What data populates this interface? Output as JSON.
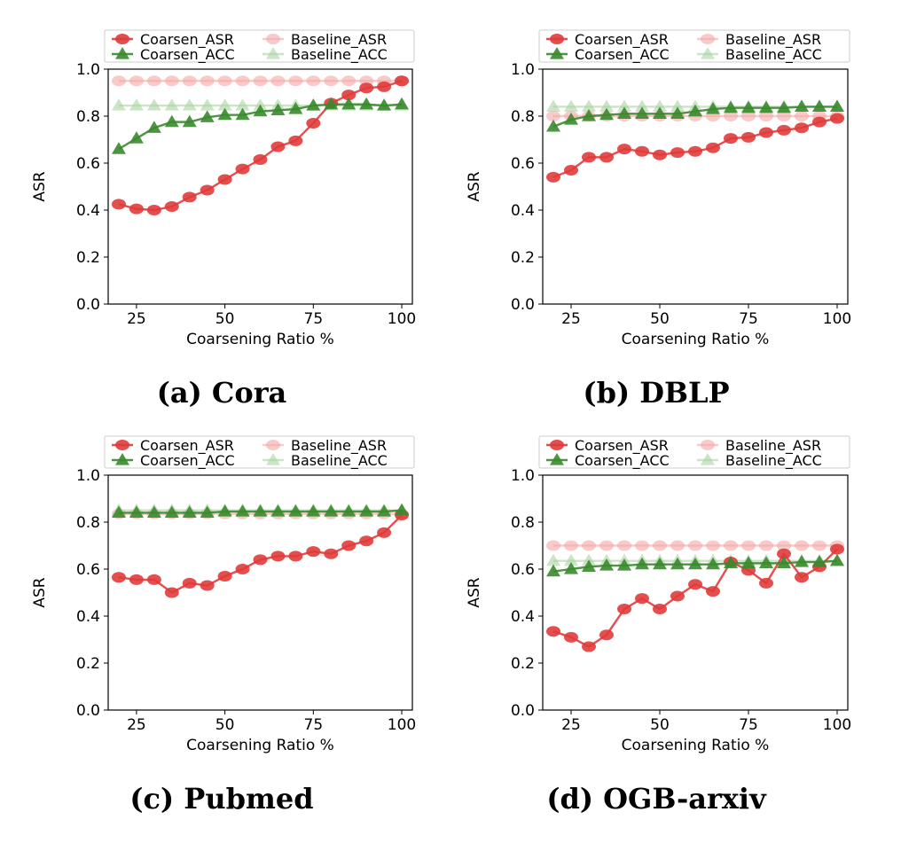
{
  "chart_data": [
    {
      "type": "line",
      "caption": "(a) Cora",
      "xlabel": "Coarsening Ratio %",
      "ylabel": "ASR",
      "xlim": [
        17,
        103
      ],
      "ylim": [
        0.0,
        1.0
      ],
      "xticks": [
        "25",
        "50",
        "75",
        "100"
      ],
      "yticks": [
        "0.0",
        "0.2",
        "0.4",
        "0.6",
        "0.8",
        "1.0"
      ],
      "legend_position": "top",
      "x": [
        20,
        25,
        30,
        35,
        40,
        45,
        50,
        55,
        60,
        65,
        70,
        75,
        80,
        85,
        90,
        95,
        100
      ],
      "series": [
        {
          "name": "Coarsen_ASR",
          "marker": "circle",
          "color": "#e03b3b",
          "alpha": 0.9,
          "values": [
            0.425,
            0.405,
            0.4,
            0.415,
            0.455,
            0.485,
            0.53,
            0.575,
            0.615,
            0.67,
            0.695,
            0.77,
            0.855,
            0.89,
            0.92,
            0.925,
            0.95
          ]
        },
        {
          "name": "Baseline_ASR",
          "marker": "circle",
          "color": "#f4a9a9",
          "alpha": 0.6,
          "values": [
            0.95,
            0.95,
            0.95,
            0.95,
            0.95,
            0.95,
            0.95,
            0.95,
            0.95,
            0.95,
            0.95,
            0.95,
            0.95,
            0.95,
            0.95,
            0.95,
            0.95
          ]
        },
        {
          "name": "Coarsen_ACC",
          "marker": "triangle",
          "color": "#3a8a2e",
          "alpha": 0.9,
          "values": [
            0.66,
            0.705,
            0.75,
            0.775,
            0.775,
            0.795,
            0.805,
            0.805,
            0.82,
            0.825,
            0.83,
            0.845,
            0.85,
            0.85,
            0.85,
            0.845,
            0.85
          ]
        },
        {
          "name": "Baseline_ACC",
          "marker": "triangle",
          "color": "#a8d4a0",
          "alpha": 0.6,
          "values": [
            0.845,
            0.845,
            0.845,
            0.845,
            0.845,
            0.845,
            0.845,
            0.845,
            0.845,
            0.845,
            0.845,
            0.845,
            0.845,
            0.845,
            0.845,
            0.845,
            0.845
          ]
        }
      ]
    },
    {
      "type": "line",
      "caption": "(b) DBLP",
      "xlabel": "Coarsening Ratio %",
      "ylabel": "ASR",
      "xlim": [
        17,
        103
      ],
      "ylim": [
        0.0,
        1.0
      ],
      "xticks": [
        "25",
        "50",
        "75",
        "100"
      ],
      "yticks": [
        "0.0",
        "0.2",
        "0.4",
        "0.6",
        "0.8",
        "1.0"
      ],
      "legend_position": "top",
      "x": [
        20,
        25,
        30,
        35,
        40,
        45,
        50,
        55,
        60,
        65,
        70,
        75,
        80,
        85,
        90,
        95,
        100
      ],
      "series": [
        {
          "name": "Coarsen_ASR",
          "marker": "circle",
          "color": "#e03b3b",
          "alpha": 0.9,
          "values": [
            0.54,
            0.57,
            0.625,
            0.625,
            0.66,
            0.65,
            0.635,
            0.645,
            0.65,
            0.665,
            0.705,
            0.71,
            0.73,
            0.74,
            0.75,
            0.775,
            0.79
          ]
        },
        {
          "name": "Baseline_ASR",
          "marker": "circle",
          "color": "#f4a9a9",
          "alpha": 0.6,
          "values": [
            0.8,
            0.8,
            0.8,
            0.8,
            0.8,
            0.8,
            0.8,
            0.8,
            0.8,
            0.8,
            0.8,
            0.8,
            0.8,
            0.8,
            0.8,
            0.8,
            0.8
          ]
        },
        {
          "name": "Coarsen_ACC",
          "marker": "triangle",
          "color": "#3a8a2e",
          "alpha": 0.9,
          "values": [
            0.755,
            0.785,
            0.8,
            0.805,
            0.81,
            0.81,
            0.81,
            0.81,
            0.82,
            0.83,
            0.835,
            0.835,
            0.835,
            0.835,
            0.84,
            0.84,
            0.84
          ]
        },
        {
          "name": "Baseline_ACC",
          "marker": "triangle",
          "color": "#a8d4a0",
          "alpha": 0.6,
          "values": [
            0.84,
            0.84,
            0.84,
            0.84,
            0.84,
            0.84,
            0.84,
            0.84,
            0.84,
            0.84,
            0.84,
            0.84,
            0.84,
            0.84,
            0.84,
            0.84,
            0.84
          ]
        }
      ]
    },
    {
      "type": "line",
      "caption": "(c) Pubmed",
      "xlabel": "Coarsening Ratio %",
      "ylabel": "ASR",
      "xlim": [
        17,
        103
      ],
      "ylim": [
        0.0,
        1.0
      ],
      "xticks": [
        "25",
        "50",
        "75",
        "100"
      ],
      "yticks": [
        "0.0",
        "0.2",
        "0.4",
        "0.6",
        "0.8",
        "1.0"
      ],
      "legend_position": "top",
      "x": [
        20,
        25,
        30,
        35,
        40,
        45,
        50,
        55,
        60,
        65,
        70,
        75,
        80,
        85,
        90,
        95,
        100
      ],
      "series": [
        {
          "name": "Coarsen_ASR",
          "marker": "circle",
          "color": "#e03b3b",
          "alpha": 0.9,
          "values": [
            0.565,
            0.555,
            0.555,
            0.5,
            0.54,
            0.53,
            0.57,
            0.6,
            0.64,
            0.655,
            0.655,
            0.675,
            0.665,
            0.7,
            0.72,
            0.755,
            0.83
          ]
        },
        {
          "name": "Baseline_ASR",
          "marker": "circle",
          "color": "#f4a9a9",
          "alpha": 0.6,
          "values": [
            0.835,
            0.835,
            0.835,
            0.835,
            0.835,
            0.835,
            0.835,
            0.835,
            0.835,
            0.835,
            0.835,
            0.835,
            0.835,
            0.835,
            0.835,
            0.835,
            0.835
          ]
        },
        {
          "name": "Coarsen_ACC",
          "marker": "triangle",
          "color": "#3a8a2e",
          "alpha": 0.9,
          "values": [
            0.84,
            0.84,
            0.84,
            0.84,
            0.84,
            0.84,
            0.845,
            0.845,
            0.845,
            0.845,
            0.845,
            0.845,
            0.845,
            0.845,
            0.845,
            0.845,
            0.85
          ]
        },
        {
          "name": "Baseline_ACC",
          "marker": "triangle",
          "color": "#a8d4a0",
          "alpha": 0.6,
          "values": [
            0.85,
            0.85,
            0.85,
            0.85,
            0.85,
            0.85,
            0.85,
            0.85,
            0.85,
            0.85,
            0.85,
            0.85,
            0.85,
            0.85,
            0.85,
            0.85,
            0.85
          ]
        }
      ]
    },
    {
      "type": "line",
      "caption": "(d) OGB-arxiv",
      "xlabel": "Coarsening Ratio %",
      "ylabel": "ASR",
      "xlim": [
        17,
        103
      ],
      "ylim": [
        0.0,
        1.0
      ],
      "xticks": [
        "25",
        "50",
        "75",
        "100"
      ],
      "yticks": [
        "0.0",
        "0.2",
        "0.4",
        "0.6",
        "0.8",
        "1.0"
      ],
      "legend_position": "top",
      "x": [
        20,
        25,
        30,
        35,
        40,
        45,
        50,
        55,
        60,
        65,
        70,
        75,
        80,
        85,
        90,
        95,
        100
      ],
      "series": [
        {
          "name": "Coarsen_ASR",
          "marker": "circle",
          "color": "#e03b3b",
          "alpha": 0.9,
          "values": [
            0.335,
            0.31,
            0.27,
            0.32,
            0.43,
            0.475,
            0.43,
            0.485,
            0.535,
            0.505,
            0.63,
            0.595,
            0.54,
            0.665,
            0.565,
            0.61,
            0.685
          ]
        },
        {
          "name": "Baseline_ASR",
          "marker": "circle",
          "color": "#f4a9a9",
          "alpha": 0.6,
          "values": [
            0.7,
            0.7,
            0.7,
            0.7,
            0.7,
            0.7,
            0.7,
            0.7,
            0.7,
            0.7,
            0.7,
            0.7,
            0.7,
            0.7,
            0.7,
            0.7,
            0.7
          ]
        },
        {
          "name": "Coarsen_ACC",
          "marker": "triangle",
          "color": "#3a8a2e",
          "alpha": 0.9,
          "values": [
            0.59,
            0.6,
            0.61,
            0.615,
            0.615,
            0.62,
            0.62,
            0.62,
            0.62,
            0.62,
            0.625,
            0.625,
            0.625,
            0.625,
            0.63,
            0.63,
            0.635
          ]
        },
        {
          "name": "Baseline_ACC",
          "marker": "triangle",
          "color": "#a8d4a0",
          "alpha": 0.6,
          "values": [
            0.635,
            0.635,
            0.635,
            0.635,
            0.635,
            0.635,
            0.635,
            0.635,
            0.635,
            0.635,
            0.635,
            0.635,
            0.635,
            0.635,
            0.635,
            0.635,
            0.635
          ]
        }
      ]
    }
  ]
}
